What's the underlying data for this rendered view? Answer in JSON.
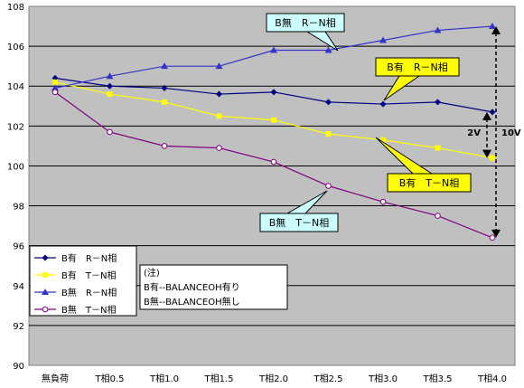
{
  "chart_data": {
    "type": "line",
    "categories": [
      "無負荷",
      "T相0.5",
      "T相1.0",
      "T相1.5",
      "T相2.0",
      "T相2.5",
      "T相3.0",
      "T相3.5",
      "T相4.0"
    ],
    "ylim": [
      90,
      108
    ],
    "yticks": [
      90,
      92,
      94,
      96,
      98,
      100,
      102,
      104,
      106,
      108
    ],
    "grid": true,
    "legend_position": "bottom-left",
    "series": [
      {
        "name": "B有　R－N相",
        "color": "#000080",
        "marker": "diamond",
        "values": [
          104.4,
          104.0,
          103.9,
          103.6,
          103.7,
          103.2,
          103.1,
          103.2,
          102.7
        ]
      },
      {
        "name": "B有　T－N相",
        "color": "#ffff00",
        "marker": "square",
        "values": [
          104.2,
          103.6,
          103.2,
          102.5,
          102.3,
          101.6,
          101.3,
          100.9,
          100.4
        ]
      },
      {
        "name": "B無　R－N相",
        "color": "#3333cc",
        "marker": "triangle",
        "values": [
          103.9,
          104.5,
          105.0,
          105.0,
          105.8,
          105.8,
          106.3,
          106.8,
          107.0
        ]
      },
      {
        "name": "B無　T－N相",
        "color": "#800080",
        "marker": "circle",
        "values": [
          103.7,
          101.7,
          101.0,
          100.9,
          100.2,
          99.0,
          98.2,
          97.5,
          96.4
        ]
      }
    ],
    "callouts": [
      {
        "text": "B無　R－N相",
        "fill": "#ccffff"
      },
      {
        "text": "B有　R－N相",
        "fill": "#ffff00"
      },
      {
        "text": "B有　T－N相",
        "fill": "#ffff00"
      },
      {
        "text": "B無　T－N相",
        "fill": "#ccffff"
      }
    ],
    "note_lines": [
      "(注)",
      "B有--BALANCEOH有り",
      "B無--BALANCEOH無し"
    ],
    "arrow_labels": {
      "small": "2V",
      "large": "10V"
    }
  }
}
